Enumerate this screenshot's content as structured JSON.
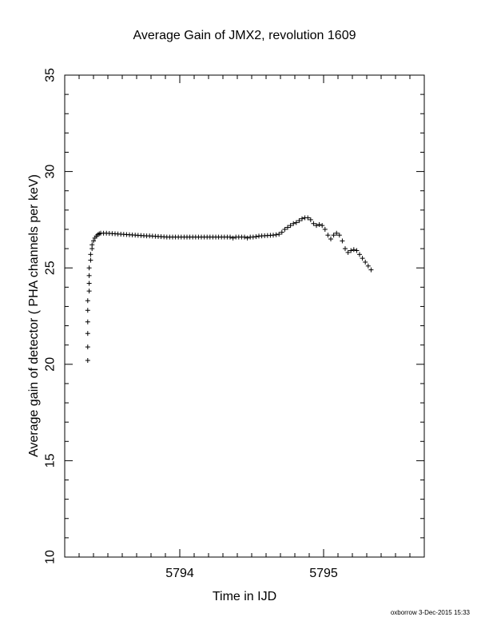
{
  "chart_data": {
    "type": "scatter",
    "title": "Average Gain of JMX2, revolution 1609",
    "xlabel": "Time in IJD",
    "ylabel": "Average gain of detector ( PHA channels per keV)",
    "xlim": [
      5793.2,
      5795.7
    ],
    "ylim": [
      10,
      35
    ],
    "xticks_major": [
      5794,
      5795
    ],
    "xticks_minor_step": 0.1,
    "yticks_major": [
      10,
      15,
      20,
      25,
      30,
      35
    ],
    "yticks_minor_step": 1,
    "marker": "+",
    "grid": false,
    "series": [
      {
        "x": [
          5793.36,
          5793.36,
          5793.36,
          5793.36,
          5793.36,
          5793.36,
          5793.37,
          5793.37,
          5793.37,
          5793.37,
          5793.38,
          5793.38,
          5793.39,
          5793.39,
          5793.4,
          5793.41,
          5793.42,
          5793.43,
          5793.44,
          5793.45,
          5793.47,
          5793.49,
          5793.51,
          5793.53,
          5793.55,
          5793.57,
          5793.59,
          5793.61,
          5793.63,
          5793.65,
          5793.67,
          5793.69,
          5793.71,
          5793.73,
          5793.75,
          5793.77,
          5793.79,
          5793.81,
          5793.83,
          5793.85,
          5793.87,
          5793.89,
          5793.91,
          5793.93,
          5793.95,
          5793.97,
          5793.99,
          5794.01,
          5794.03,
          5794.05,
          5794.07,
          5794.09,
          5794.11,
          5794.13,
          5794.15,
          5794.17,
          5794.19,
          5794.21,
          5794.23,
          5794.25,
          5794.27,
          5794.29,
          5794.31,
          5794.33,
          5794.35,
          5794.37,
          5794.39,
          5794.41,
          5794.43,
          5794.45,
          5794.47,
          5794.49,
          5794.51,
          5794.53,
          5794.55,
          5794.57,
          5794.59,
          5794.61,
          5794.63,
          5794.65,
          5794.67,
          5794.69,
          5794.71,
          5794.73,
          5794.75,
          5794.77,
          5794.79,
          5794.81,
          5794.83,
          5794.85,
          5794.87,
          5794.89,
          5794.91,
          5794.93,
          5794.95,
          5794.97,
          5794.99,
          5795.01,
          5795.03,
          5795.05,
          5795.07,
          5795.09,
          5795.11,
          5795.13,
          5795.15,
          5795.17,
          5795.19,
          5795.21,
          5795.23,
          5795.25,
          5795.27,
          5795.29,
          5795.31,
          5795.33
        ],
        "y": [
          20.2,
          20.9,
          21.6,
          22.2,
          22.8,
          23.3,
          23.8,
          24.2,
          24.6,
          25.0,
          25.4,
          25.7,
          26.0,
          26.2,
          26.4,
          26.55,
          26.65,
          26.72,
          26.77,
          26.8,
          26.8,
          26.8,
          26.79,
          26.78,
          26.77,
          26.76,
          26.75,
          26.74,
          26.73,
          26.72,
          26.71,
          26.7,
          26.69,
          26.68,
          26.67,
          26.66,
          26.66,
          26.65,
          26.64,
          26.63,
          26.62,
          26.61,
          26.6,
          26.6,
          26.6,
          26.6,
          26.6,
          26.6,
          26.6,
          26.6,
          26.6,
          26.6,
          26.6,
          26.6,
          26.6,
          26.6,
          26.6,
          26.6,
          26.6,
          26.6,
          26.6,
          26.6,
          26.6,
          26.6,
          26.6,
          26.55,
          26.6,
          26.6,
          26.6,
          26.6,
          26.55,
          26.6,
          26.6,
          26.62,
          26.65,
          26.66,
          26.67,
          26.68,
          26.69,
          26.7,
          26.72,
          26.75,
          26.85,
          27.0,
          27.1,
          27.2,
          27.3,
          27.35,
          27.45,
          27.55,
          27.6,
          27.6,
          27.5,
          27.3,
          27.2,
          27.25,
          27.2,
          27.0,
          26.7,
          26.5,
          26.7,
          26.8,
          26.7,
          26.4,
          26.0,
          25.8,
          25.9,
          25.95,
          25.9,
          25.7,
          25.5,
          25.3,
          25.1,
          24.9
        ]
      }
    ]
  },
  "footer": {
    "credit": "oxborrow 3-Dec-2015 15:33"
  }
}
